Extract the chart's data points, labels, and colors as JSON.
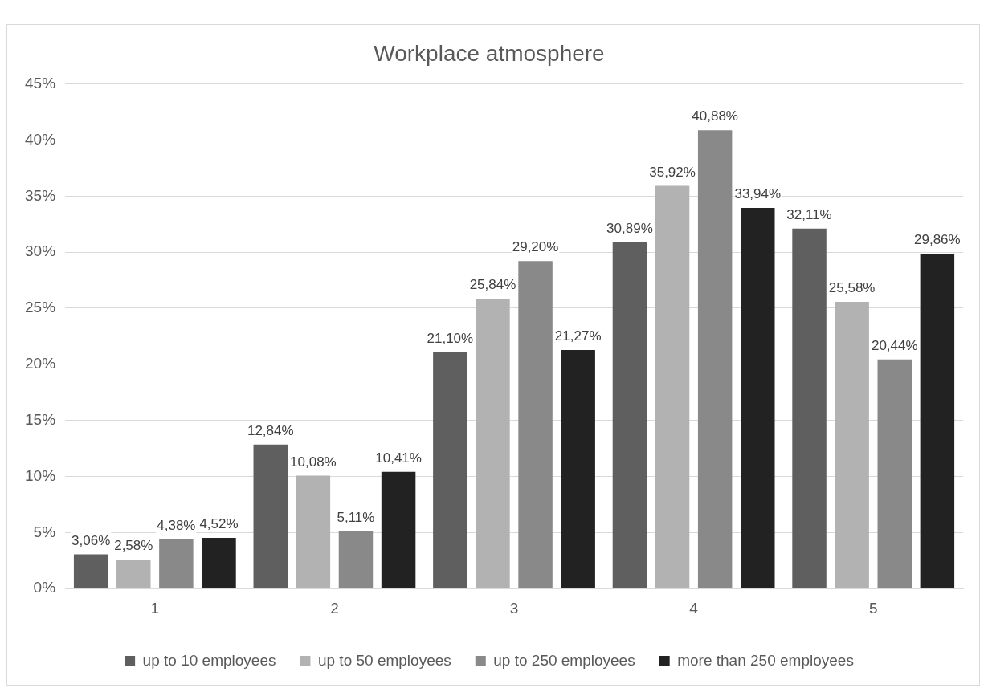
{
  "chart_data": {
    "type": "bar",
    "title": "Workplace atmosphere",
    "categories": [
      "1",
      "2",
      "3",
      "4",
      "5"
    ],
    "series": [
      {
        "name": "up to 10 employees",
        "color": "#5f5f5f",
        "values": [
          3.06,
          12.84,
          21.1,
          30.89,
          32.11
        ],
        "value_labels": [
          "3,06%",
          "12,84%",
          "21,10%",
          "30,89%",
          "32,11%"
        ]
      },
      {
        "name": "up to 50 employees",
        "color": "#b2b2b2",
        "values": [
          2.58,
          10.08,
          25.84,
          35.92,
          25.58
        ],
        "value_labels": [
          "2,58%",
          "10,08%",
          "25,84%",
          "35,92%",
          "25,58%"
        ]
      },
      {
        "name": "up to 250 employees",
        "color": "#898989",
        "values": [
          4.38,
          5.11,
          29.2,
          40.88,
          20.44
        ],
        "value_labels": [
          "4,38%",
          "5,11%",
          "29,20%",
          "40,88%",
          "20,44%"
        ]
      },
      {
        "name": "more than 250 employees",
        "color": "#222222",
        "values": [
          4.52,
          10.41,
          21.27,
          33.94,
          29.86
        ],
        "value_labels": [
          "4,52%",
          "10,41%",
          "21,27%",
          "33,94%",
          "29,86%"
        ]
      }
    ],
    "ylim": [
      0,
      45
    ],
    "yticks": [
      {
        "value": 0,
        "label": "0%"
      },
      {
        "value": 5,
        "label": "5%"
      },
      {
        "value": 10,
        "label": "10%"
      },
      {
        "value": 15,
        "label": "15%"
      },
      {
        "value": 20,
        "label": "20%"
      },
      {
        "value": 25,
        "label": "25%"
      },
      {
        "value": 30,
        "label": "30%"
      },
      {
        "value": 35,
        "label": "35%"
      },
      {
        "value": 40,
        "label": "40%"
      },
      {
        "value": 45,
        "label": "45%"
      }
    ],
    "grid": "y",
    "legend": "bottom"
  }
}
